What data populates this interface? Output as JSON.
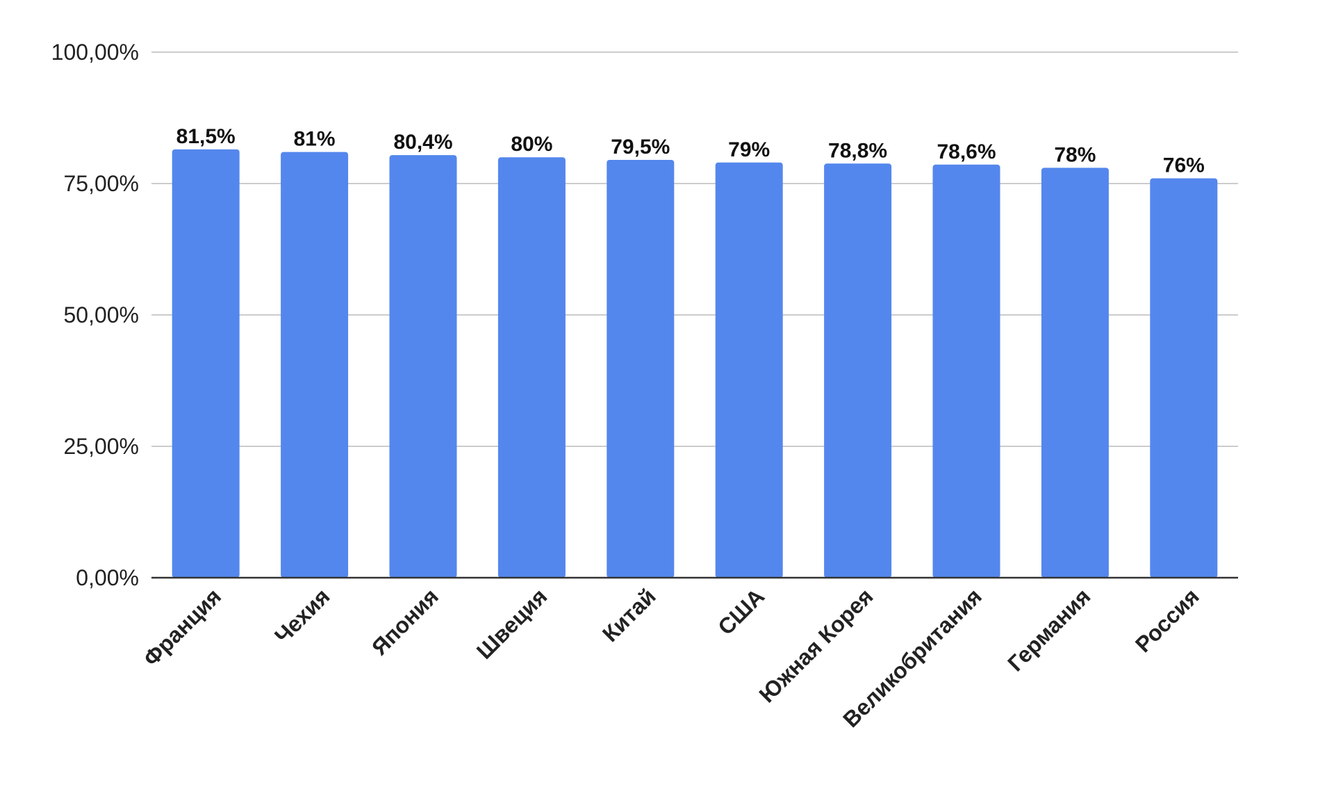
{
  "chart_data": {
    "type": "bar",
    "title": "",
    "xlabel": "",
    "ylabel": "",
    "categories": [
      "Франция",
      "Чехия",
      "Япония",
      "Швеция",
      "Китай",
      "США",
      "Южная Корея",
      "Великобритания",
      "Германия",
      "Россия"
    ],
    "values": [
      81.5,
      81,
      80.4,
      80,
      79.5,
      79,
      78.8,
      78.6,
      78,
      76
    ],
    "data_labels": [
      "81,5%",
      "81%",
      "80,4%",
      "80%",
      "79,5%",
      "79%",
      "78,8%",
      "78,6%",
      "78%",
      "76%"
    ],
    "ylim": [
      0,
      100
    ],
    "yticks": [
      0,
      25,
      50,
      75,
      100
    ],
    "ytick_labels": [
      "0,00%",
      "25,00%",
      "50,00%",
      "75,00%",
      "100,00%"
    ],
    "grid": true,
    "legend": "none",
    "colors": {
      "bar": "#5487ED",
      "grid": "#CCCCCC",
      "axis": "#333333"
    }
  }
}
